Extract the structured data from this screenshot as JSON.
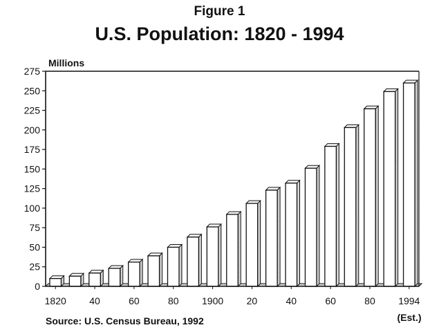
{
  "figure_label": "Figure 1",
  "title": "U.S. Population: 1820 - 1994",
  "source": "Source: U.S. Census Bureau, 1992",
  "colors": {
    "ink": "#111111",
    "bar_fill": "#ffffff",
    "bar_shade": "#cfcfcf"
  },
  "chart_data": {
    "type": "bar",
    "title": "U.S. Population: 1820 - 1994",
    "ylabel": "Millions",
    "xlabel": "",
    "ylim": [
      0,
      275
    ],
    "yticks": [
      0,
      25,
      50,
      75,
      100,
      125,
      150,
      175,
      200,
      225,
      250,
      275
    ],
    "categories": [
      "1820",
      "1830",
      "1840",
      "1850",
      "1860",
      "1870",
      "1880",
      "1890",
      "1900",
      "1910",
      "1920",
      "1930",
      "1940",
      "1950",
      "1960",
      "1970",
      "1980",
      "1990",
      "1994"
    ],
    "values": [
      10,
      13,
      17,
      23,
      31,
      39,
      50,
      63,
      76,
      92,
      106,
      123,
      132,
      151,
      179,
      203,
      227,
      249,
      260
    ],
    "xtick_labels": [
      {
        "category": "1820",
        "label": "1820"
      },
      {
        "category": "1840",
        "label": "40"
      },
      {
        "category": "1860",
        "label": "60"
      },
      {
        "category": "1880",
        "label": "80"
      },
      {
        "category": "1900",
        "label": "1900"
      },
      {
        "category": "1920",
        "label": "20"
      },
      {
        "category": "1940",
        "label": "40"
      },
      {
        "category": "1960",
        "label": "60"
      },
      {
        "category": "1980",
        "label": "80"
      },
      {
        "category": "1994",
        "label": "1994"
      }
    ],
    "annotation": "(Est.)",
    "grid": false,
    "legend": "none"
  }
}
